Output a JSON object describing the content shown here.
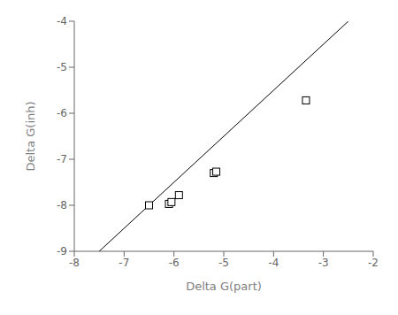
{
  "chart_data": {
    "type": "scatter",
    "xlabel": "Delta G(part)",
    "ylabel": "Delta G(inh)",
    "xlim": [
      -8,
      -2
    ],
    "xticks": [
      -8,
      -7,
      -6,
      -5,
      -4,
      -3,
      -2
    ],
    "ylim": [
      -9,
      -4
    ],
    "yticks": [
      -9,
      -8,
      -7,
      -6,
      -5,
      -4
    ],
    "grid": false,
    "series": [
      {
        "type": "line",
        "color": "black",
        "line_style": "solid",
        "x": [
          -7.5,
          -2.5
        ],
        "values": [
          -9.0,
          -4.0
        ]
      },
      {
        "type": "scatter",
        "marker": "square",
        "color": "black",
        "x": [
          -6.5,
          -6.1,
          -6.05,
          -5.9,
          -5.2,
          -5.15,
          -3.35
        ],
        "values": [
          -8.0,
          -7.97,
          -7.93,
          -7.78,
          -7.3,
          -7.27,
          -5.72
        ]
      }
    ]
  }
}
